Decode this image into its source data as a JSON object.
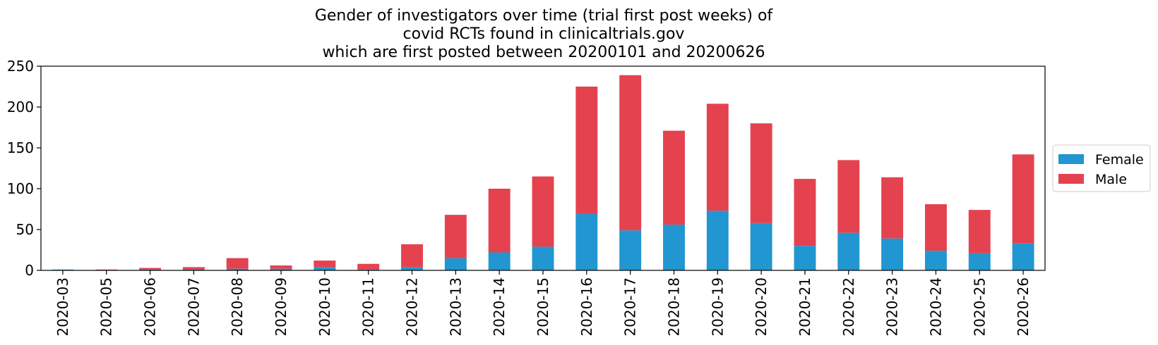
{
  "chart_data": {
    "type": "bar",
    "stacked": true,
    "title_lines": [
      "Gender of investigators over time (trial first post weeks) of",
      "covid RCTs found in clinicaltrials.gov",
      "which are first posted between 20200101 and 20200626"
    ],
    "xlabel": "",
    "ylabel": "",
    "ylim": [
      0,
      250
    ],
    "yticks": [
      0,
      50,
      100,
      150,
      200,
      250
    ],
    "categories": [
      "2020-03",
      "2020-05",
      "2020-06",
      "2020-07",
      "2020-08",
      "2020-09",
      "2020-10",
      "2020-11",
      "2020-12",
      "2020-13",
      "2020-14",
      "2020-15",
      "2020-16",
      "2020-17",
      "2020-18",
      "2020-19",
      "2020-20",
      "2020-21",
      "2020-22",
      "2020-23",
      "2020-24",
      "2020-25",
      "2020-26"
    ],
    "series": [
      {
        "name": "Female",
        "color": "#2196d0",
        "values": [
          1,
          0,
          1,
          1,
          2,
          2,
          4,
          1,
          4,
          15,
          22,
          29,
          69,
          49,
          56,
          73,
          58,
          30,
          46,
          39,
          24,
          21,
          33
        ]
      },
      {
        "name": "Male",
        "color": "#e5424f",
        "values": [
          0,
          1,
          2,
          3,
          13,
          4,
          8,
          7,
          28,
          53,
          78,
          86,
          156,
          190,
          115,
          131,
          122,
          82,
          89,
          75,
          57,
          53,
          109
        ]
      }
    ],
    "legend_position": "center-right",
    "grid": false
  }
}
